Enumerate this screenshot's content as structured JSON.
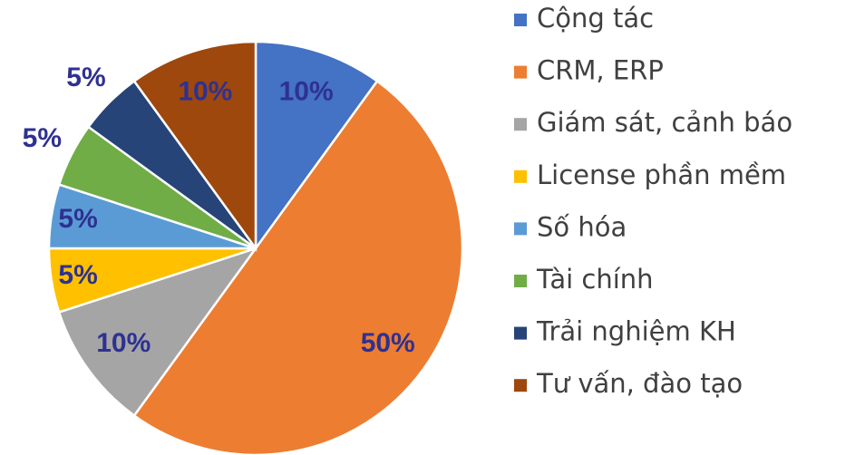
{
  "chart_data": {
    "type": "pie",
    "categories": [
      "Cộng tác",
      "CRM, ERP",
      "Giám sát, cảnh báo",
      "License phần mềm",
      "Số hóa",
      "Tài chính",
      "Trải nghiệm KH",
      "Tư vấn, đào tạo"
    ],
    "values": [
      10,
      50,
      10,
      5,
      5,
      5,
      5,
      10
    ],
    "value_labels": [
      "10%",
      "50%",
      "10%",
      "5%",
      "5%",
      "5%",
      "5%",
      "10%"
    ],
    "colors": [
      "#4472c4",
      "#ed7d31",
      "#a5a5a5",
      "#ffc000",
      "#5b9bd5",
      "#70ad47",
      "#264478",
      "#9e480e"
    ],
    "legend": "right"
  }
}
